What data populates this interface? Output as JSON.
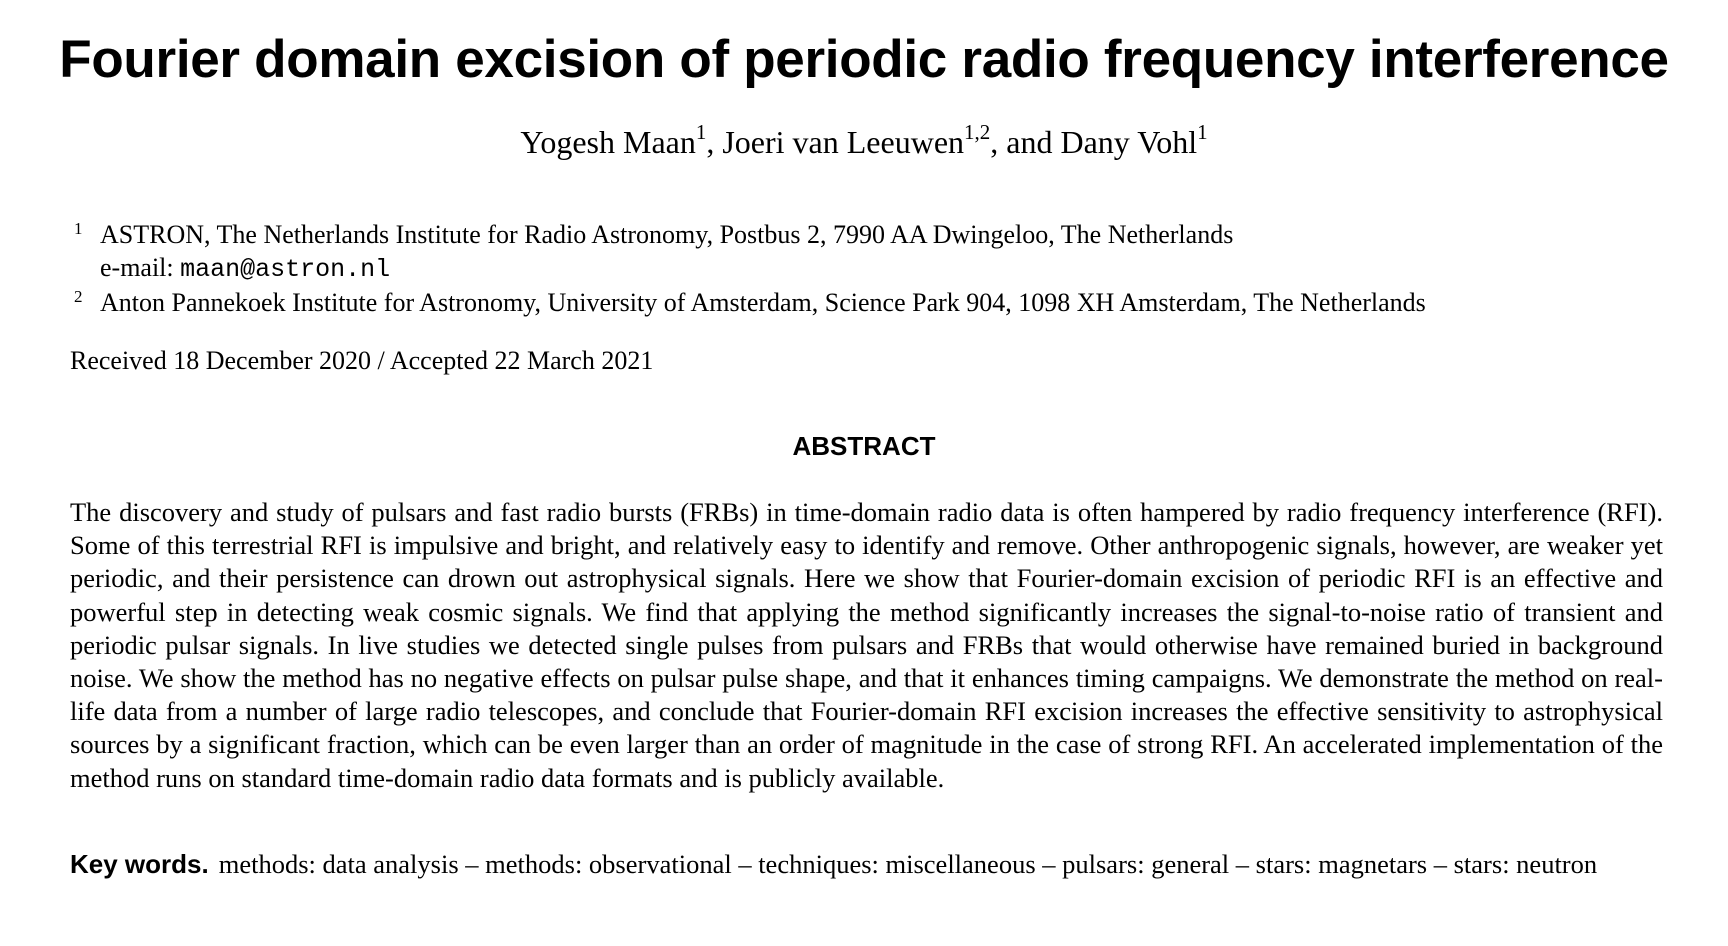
{
  "paper": {
    "title": "Fourier domain excision of periodic radio frequency interference",
    "authors": [
      {
        "name": "Yogesh Maan",
        "affil": "1",
        "sep": ", "
      },
      {
        "name": "Joeri van Leeuwen",
        "affil": "1,2",
        "sep": ", and "
      },
      {
        "name": "Dany Vohl",
        "affil": "1",
        "sep": ""
      }
    ],
    "affiliations": [
      {
        "mark": "1",
        "text": "ASTRON, The Netherlands Institute for Radio Astronomy, Postbus 2, 7990 AA Dwingeloo, The Netherlands",
        "email_prefix": "e-mail: ",
        "email": "maan@astron.nl"
      },
      {
        "mark": "2",
        "text": "Anton Pannekoek Institute for Astronomy, University of Amsterdam, Science Park 904, 1098 XH Amsterdam, The Netherlands"
      }
    ],
    "received": "Received 18 December 2020 / Accepted 22 March 2021",
    "abstract_heading": "ABSTRACT",
    "abstract": "The discovery and study of pulsars and fast radio bursts (FRBs) in time-domain radio data is often hampered by radio frequency interference (RFI). Some of this terrestrial RFI is impulsive and bright, and relatively easy to identify and remove. Other anthropogenic signals, however, are weaker yet periodic, and their persistence can drown out astrophysical signals. Here we show that Fourier-domain excision of periodic RFI is an effective and powerful step in detecting weak cosmic signals. We find that applying the method significantly increases the signal-to-noise ratio of transient and periodic pulsar signals. In live studies we detected single pulses from pulsars and FRBs that would otherwise have remained buried in background noise. We show the method has no negative effects on pulsar pulse shape, and that it enhances timing campaigns. We demonstrate the method on real-life data from a number of large radio telescopes, and conclude that Fourier-domain RFI excision increases the effective sensitivity to astrophysical sources by a significant fraction, which can be even larger than an order of magnitude in the case of strong RFI. An accelerated implementation of the method runs on standard time-domain radio data formats and is publicly available.",
    "keywords_label": "Key words.",
    "keywords": "methods: data analysis – methods: observational – techniques: miscellaneous – pulsars: general – stars: magnetars – stars: neutron"
  }
}
